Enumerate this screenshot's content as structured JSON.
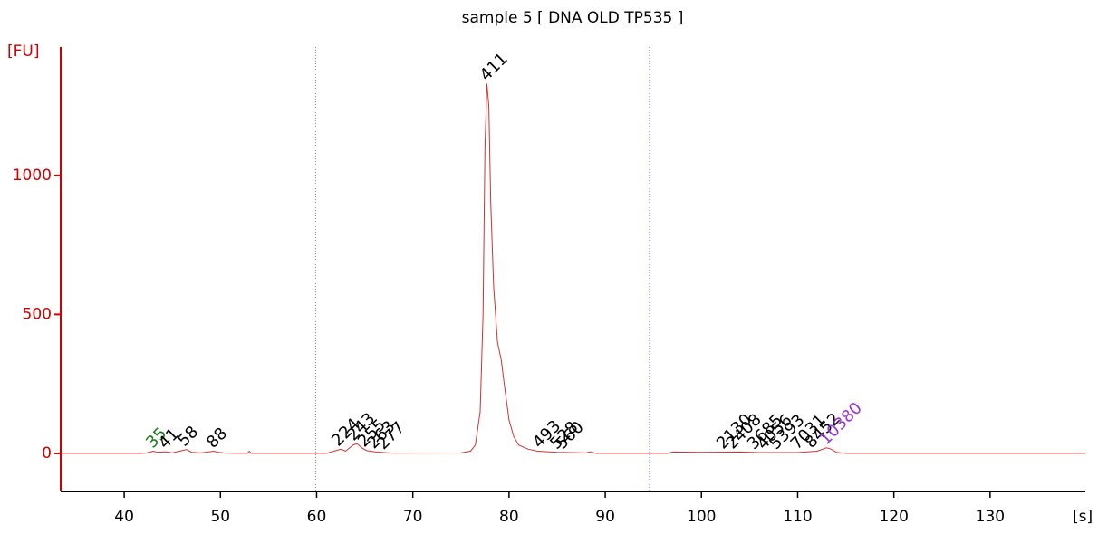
{
  "chart_data": {
    "type": "line",
    "title": "sample 5  [ DNA OLD TP535 ]",
    "y_label": "[FU]",
    "x_label": "[s]",
    "xlim": [
      33.4,
      139.9
    ],
    "ylim": [
      -137,
      1462
    ],
    "xticks": [
      40,
      50,
      60,
      70,
      80,
      90,
      100,
      110,
      120,
      130
    ],
    "yticks": [
      0,
      500,
      1000
    ],
    "color": "#cc3333",
    "axis_color": "#cc0000",
    "x": [
      33.4,
      42,
      42.5,
      43,
      43.5,
      44.3,
      45,
      46,
      46.5,
      47,
      48,
      49.3,
      49.8,
      50.5,
      52.8,
      53,
      53.2,
      61,
      62,
      62.5,
      63,
      63.8,
      64.2,
      64.7,
      65.2,
      66,
      67,
      68,
      75,
      76,
      76.5,
      77,
      77.3,
      77.5,
      77.7,
      77.9,
      78.1,
      78.4,
      78.8,
      79.2,
      79.5,
      80,
      80.5,
      81,
      82,
      83,
      85,
      88,
      88.5,
      89,
      96.5,
      97,
      100,
      104,
      106,
      110,
      112,
      113,
      113.5,
      114,
      115,
      139.9
    ],
    "values": [
      0,
      0,
      3,
      8,
      4,
      6,
      2,
      10,
      14,
      4,
      2,
      8,
      4,
      1,
      0,
      8,
      0,
      0,
      10,
      15,
      8,
      30,
      35,
      20,
      10,
      6,
      3,
      1,
      2,
      8,
      30,
      150,
      500,
      1100,
      1330,
      1250,
      900,
      600,
      400,
      335,
      250,
      120,
      60,
      30,
      15,
      8,
      4,
      2,
      6,
      0,
      0,
      5,
      4,
      5,
      3,
      3,
      8,
      20,
      15,
      4,
      0,
      0
    ],
    "reference_lines": [
      {
        "x": 59.9,
        "color": "#888888"
      },
      {
        "x": 94.6,
        "color": "#6666ff"
      }
    ],
    "annotations": [
      {
        "text": "35",
        "x": 43,
        "y": 8,
        "color": "#1a7a1a"
      },
      {
        "text": "41",
        "x": 44.3,
        "y": 6,
        "color": "#000000"
      },
      {
        "text": "58",
        "x": 46.3,
        "y": 14,
        "color": "#000000"
      },
      {
        "text": "88",
        "x": 49.3,
        "y": 8,
        "color": "#000000"
      },
      {
        "text": "224",
        "x": 62.3,
        "y": 15,
        "color": "#000000"
      },
      {
        "text": "243",
        "x": 63.9,
        "y": 35,
        "color": "#000000"
      },
      {
        "text": "255",
        "x": 65,
        "y": 12,
        "color": "#000000"
      },
      {
        "text": "263",
        "x": 66,
        "y": 6,
        "color": "#000000"
      },
      {
        "text": "277",
        "x": 67,
        "y": 3,
        "color": "#000000"
      },
      {
        "text": "411",
        "x": 77.7,
        "y": 1330,
        "color": "#000000"
      },
      {
        "text": "493",
        "x": 83.2,
        "y": 8,
        "color": "#000000"
      },
      {
        "text": "528",
        "x": 85,
        "y": 4,
        "color": "#000000"
      },
      {
        "text": "560",
        "x": 85.6,
        "y": 4,
        "color": "#000000"
      },
      {
        "text": "2130",
        "x": 102.3,
        "y": 5,
        "color": "#000000"
      },
      {
        "text": "2408",
        "x": 103.3,
        "y": 5,
        "color": "#000000"
      },
      {
        "text": "3685",
        "x": 105.5,
        "y": 3,
        "color": "#000000"
      },
      {
        "text": "4056",
        "x": 106.5,
        "y": 3,
        "color": "#000000"
      },
      {
        "text": "5393",
        "x": 107.8,
        "y": 3,
        "color": "#000000"
      },
      {
        "text": "7031",
        "x": 110,
        "y": 3,
        "color": "#000000"
      },
      {
        "text": "8452",
        "x": 111.5,
        "y": 8,
        "color": "#000000"
      },
      {
        "text": "10380",
        "x": 113,
        "y": 20,
        "color": "#9b30d9"
      }
    ]
  }
}
